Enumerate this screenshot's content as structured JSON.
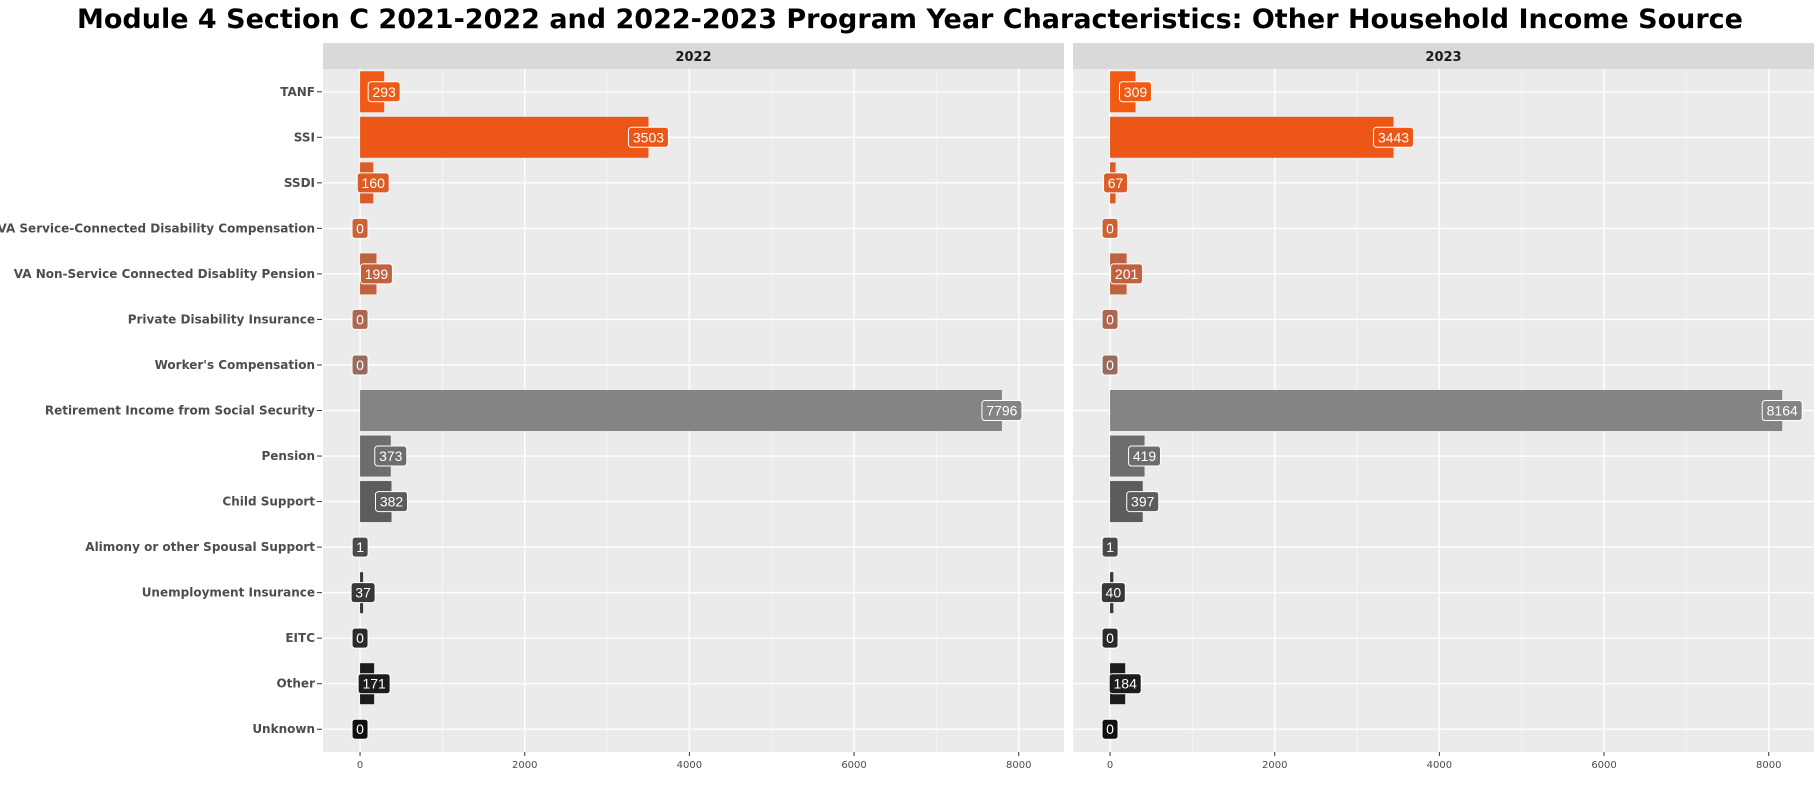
{
  "chart_data": {
    "type": "bar",
    "orientation": "horizontal",
    "title": "Module 4 Section C 2021-2022 and 2022-2023 Program Year Characteristics: Other Household Income Source",
    "categories": [
      "TANF",
      "SSI",
      "SSDI",
      "VA Service-Connected Disability Compensation",
      "VA Non-Service Connected Disablity Pension",
      "Private Disability Insurance",
      "Worker's Compensation",
      "Retirement Income from Social Security",
      "Pension",
      "Child Support",
      "Alimony or other Spousal Support",
      "Unemployment Insurance",
      "EITC",
      "Other",
      "Unknown"
    ],
    "colors": [
      "#f05a14",
      "#ec5718",
      "#dc5c28",
      "#cd6035",
      "#c0623f",
      "#ad6650",
      "#9a6a5e",
      "#848487",
      "#6d6d70",
      "#5c5c5e",
      "#4a4a4c",
      "#383839",
      "#2a2a2b",
      "#1c1c1c",
      "#0f0f0f"
    ],
    "panels": [
      {
        "name": "2022",
        "values": [
          293,
          3503,
          160,
          0,
          199,
          0,
          0,
          7796,
          373,
          382,
          1,
          37,
          0,
          171,
          0
        ]
      },
      {
        "name": "2023",
        "values": [
          309,
          3443,
          67,
          0,
          201,
          0,
          0,
          8164,
          419,
          397,
          1,
          40,
          0,
          184,
          0
        ]
      }
    ],
    "x_ticks": [
      0,
      2000,
      4000,
      6000,
      8000
    ],
    "xlim": [
      -450,
      8550
    ],
    "grid": true,
    "legend": "none"
  }
}
